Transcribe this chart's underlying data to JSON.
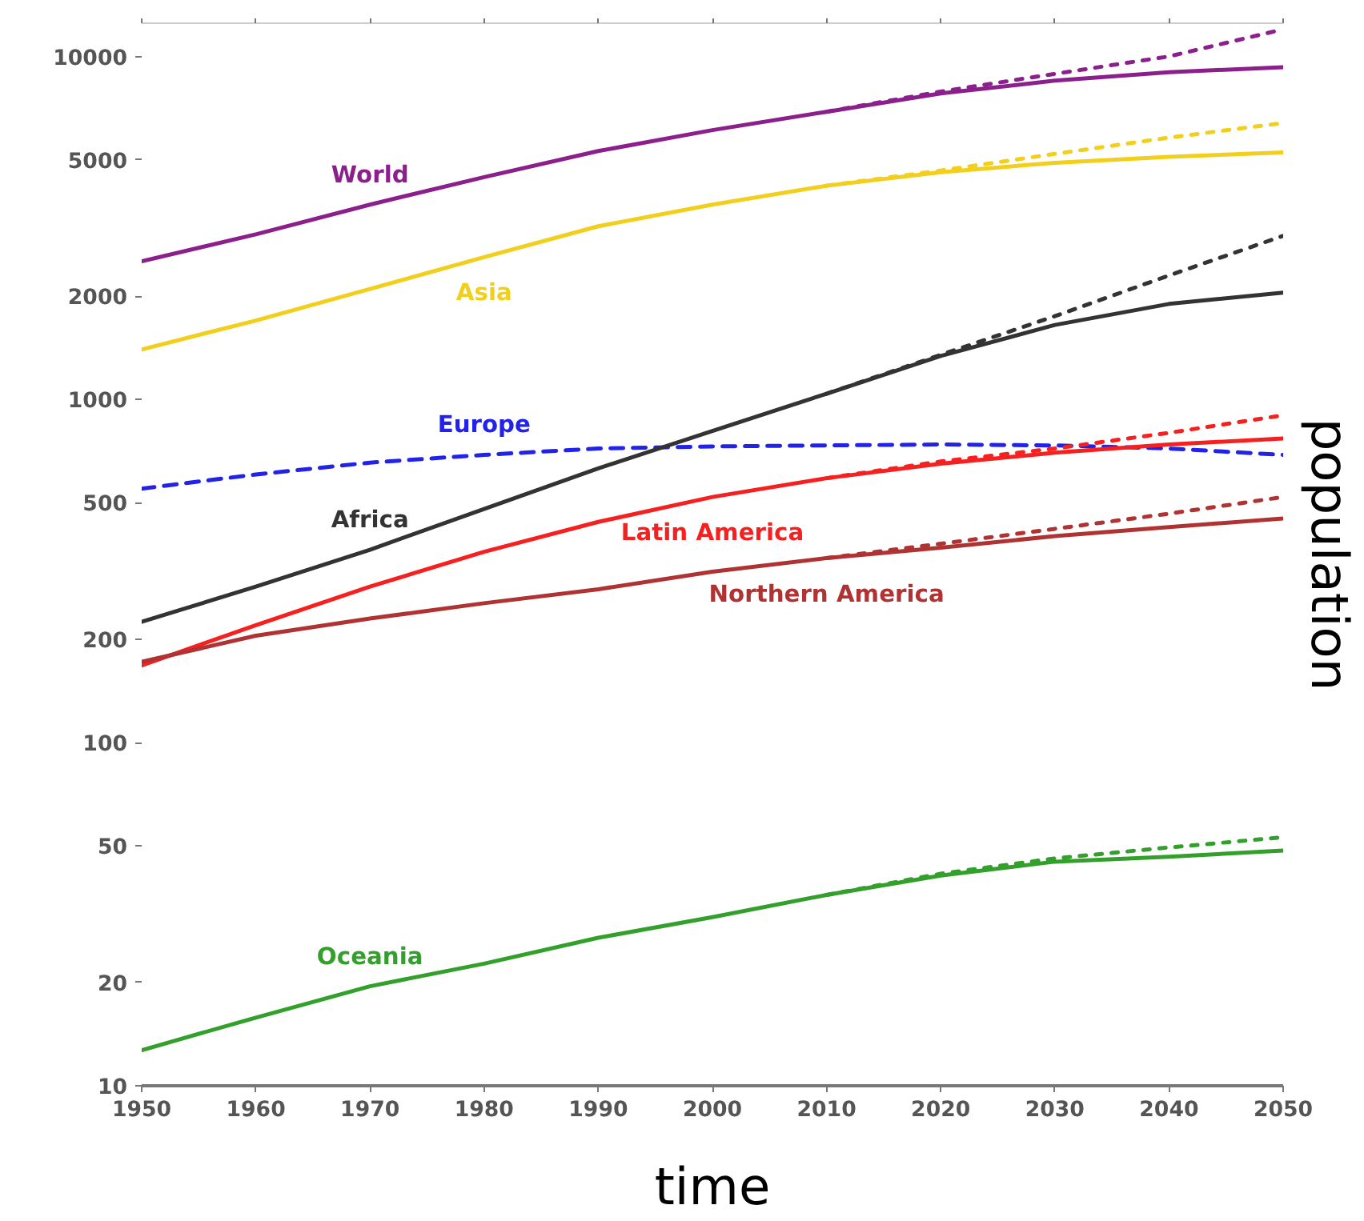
{
  "chart_data": {
    "type": "line",
    "xlabel": "time",
    "ylabel": "population",
    "log": "y",
    "grid": false,
    "x": [
      1950,
      1960,
      1970,
      1980,
      1990,
      2000,
      2010,
      2020,
      2030,
      2040,
      2050
    ],
    "xlim": [
      1950,
      2050
    ],
    "ylim": [
      10,
      12500
    ],
    "xticks": [
      1950,
      1960,
      1970,
      1980,
      1990,
      2000,
      2010,
      2020,
      2030,
      2040,
      2050
    ],
    "yticks": [
      10,
      20,
      50,
      100,
      200,
      500,
      1000,
      2000,
      5000,
      10000
    ],
    "series": [
      {
        "name": "World",
        "color": "#8b1f8b",
        "line_style": "solid",
        "values": [
          2530,
          3030,
          3700,
          4450,
          5300,
          6100,
          6900,
          7800,
          8500,
          9000,
          9300
        ]
      },
      {
        "name": "Asia",
        "color": "#f2cf1d",
        "line_style": "solid",
        "values": [
          1400,
          1700,
          2100,
          2600,
          3200,
          3700,
          4200,
          4600,
          4900,
          5100,
          5250
        ]
      },
      {
        "name": "Europe",
        "color": "#2323e8",
        "line_style": "dashed",
        "values": [
          550,
          605,
          655,
          690,
          720,
          730,
          735,
          740,
          735,
          720,
          690
        ]
      },
      {
        "name": "Africa",
        "color": "#333333",
        "line_style": "solid",
        "values": [
          225,
          285,
          365,
          480,
          630,
          810,
          1040,
          1340,
          1650,
          1900,
          2050
        ]
      },
      {
        "name": "Latin America",
        "color": "#f52020",
        "line_style": "solid",
        "values": [
          168,
          220,
          285,
          360,
          440,
          520,
          590,
          650,
          700,
          740,
          770
        ]
      },
      {
        "name": "Northern America",
        "color": "#b03333",
        "line_style": "solid",
        "values": [
          172,
          205,
          230,
          255,
          280,
          315,
          345,
          370,
          400,
          425,
          450
        ]
      },
      {
        "name": "Oceania",
        "color": "#33a02c",
        "line_style": "solid",
        "values": [
          12.7,
          15.8,
          19.5,
          22.7,
          27,
          31,
          36,
          41,
          45,
          46.5,
          48.5
        ]
      },
      {
        "color": "#8b1f8b",
        "line_style": "dotted",
        "x": [
          2010,
          2020,
          2030,
          2040,
          2050
        ],
        "values": [
          6900,
          7900,
          8900,
          10000,
          12000
        ]
      },
      {
        "color": "#f2cf1d",
        "line_style": "dotted",
        "x": [
          2010,
          2020,
          2030,
          2040,
          2050
        ],
        "values": [
          4200,
          4650,
          5200,
          5800,
          6400
        ]
      },
      {
        "color": "#333333",
        "line_style": "dotted",
        "x": [
          2010,
          2020,
          2030,
          2040,
          2050
        ],
        "values": [
          1040,
          1350,
          1750,
          2300,
          3000
        ]
      },
      {
        "color": "#f52020",
        "line_style": "dotted",
        "x": [
          2010,
          2020,
          2030,
          2040,
          2050
        ],
        "values": [
          590,
          660,
          720,
          800,
          900
        ]
      },
      {
        "color": "#b03333",
        "line_style": "dotted",
        "x": [
          2010,
          2020,
          2030,
          2040,
          2050
        ],
        "values": [
          345,
          380,
          420,
          465,
          520
        ]
      },
      {
        "color": "#33a02c",
        "line_style": "dotted",
        "x": [
          2010,
          2020,
          2030,
          2040,
          2050
        ],
        "values": [
          36,
          41.5,
          46,
          49.5,
          53
        ]
      }
    ]
  }
}
